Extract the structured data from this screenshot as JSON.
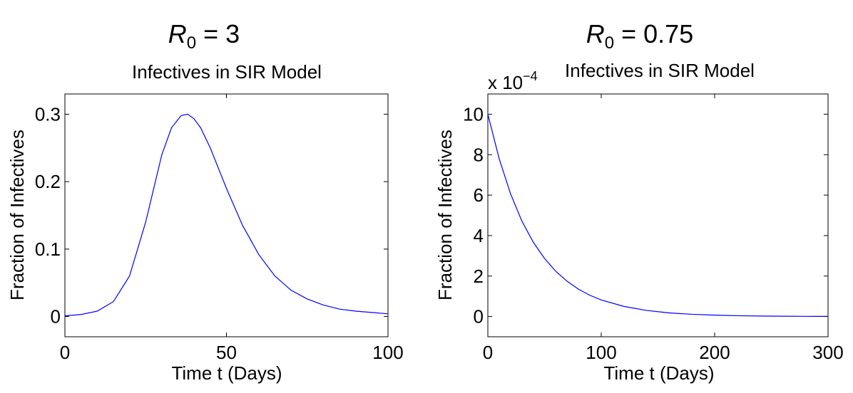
{
  "chart_data": [
    {
      "type": "line",
      "suptitle": {
        "variable": "R",
        "subscript": "0",
        "relation": " = 3"
      },
      "title": "Infectives in SIR Model",
      "xlabel": "Time t (Days)",
      "ylabel": "Fraction of Infectives",
      "xlim": [
        0,
        100
      ],
      "ylim": [
        -0.03,
        0.33
      ],
      "xticks": [
        0,
        50,
        100
      ],
      "yticks": [
        0,
        0.1,
        0.2,
        0.3
      ],
      "xtick_labels": [
        "0",
        "50",
        "100"
      ],
      "ytick_labels": [
        "0",
        "0.1",
        "0.2",
        "0.3"
      ],
      "exponent_label": {
        "base": "",
        "power": ""
      },
      "grid": false,
      "line_color": "#0000ff",
      "series": [
        {
          "x": [
            0,
            5,
            10,
            15,
            20,
            25,
            30,
            33,
            36,
            38,
            40,
            42,
            45,
            50,
            55,
            60,
            65,
            70,
            75,
            80,
            85,
            90,
            95,
            100
          ],
          "y": [
            0.001,
            0.003,
            0.008,
            0.022,
            0.06,
            0.14,
            0.24,
            0.28,
            0.298,
            0.3,
            0.293,
            0.28,
            0.25,
            0.19,
            0.135,
            0.092,
            0.06,
            0.039,
            0.026,
            0.017,
            0.011,
            0.008,
            0.006,
            0.004
          ]
        }
      ]
    },
    {
      "type": "line",
      "suptitle": {
        "variable": "R",
        "subscript": "0",
        "relation": " = 0.75"
      },
      "title": "Infectives in SIR Model",
      "xlabel": "Time t (Days)",
      "ylabel": "Fraction of Infectives",
      "xlim": [
        0,
        300
      ],
      "ylim": [
        -1,
        11
      ],
      "xticks": [
        0,
        100,
        200,
        300
      ],
      "yticks": [
        0,
        2,
        4,
        6,
        8,
        10
      ],
      "xtick_labels": [
        "0",
        "100",
        "200",
        "300"
      ],
      "ytick_labels": [
        "0",
        "2",
        "4",
        "6",
        "8",
        "10"
      ],
      "exponent_label": {
        "base": "x 10",
        "power": "−4"
      },
      "grid": false,
      "line_color": "#0000ff",
      "series": [
        {
          "x": [
            0,
            10,
            20,
            30,
            40,
            50,
            60,
            70,
            80,
            90,
            100,
            120,
            140,
            160,
            180,
            200,
            220,
            240,
            260,
            280,
            300
          ],
          "y": [
            10,
            7.8,
            6.07,
            4.72,
            3.68,
            2.87,
            2.23,
            1.74,
            1.35,
            1.05,
            0.82,
            0.5,
            0.3,
            0.18,
            0.11,
            0.07,
            0.04,
            0.026,
            0.016,
            0.01,
            0.006
          ]
        }
      ]
    }
  ]
}
